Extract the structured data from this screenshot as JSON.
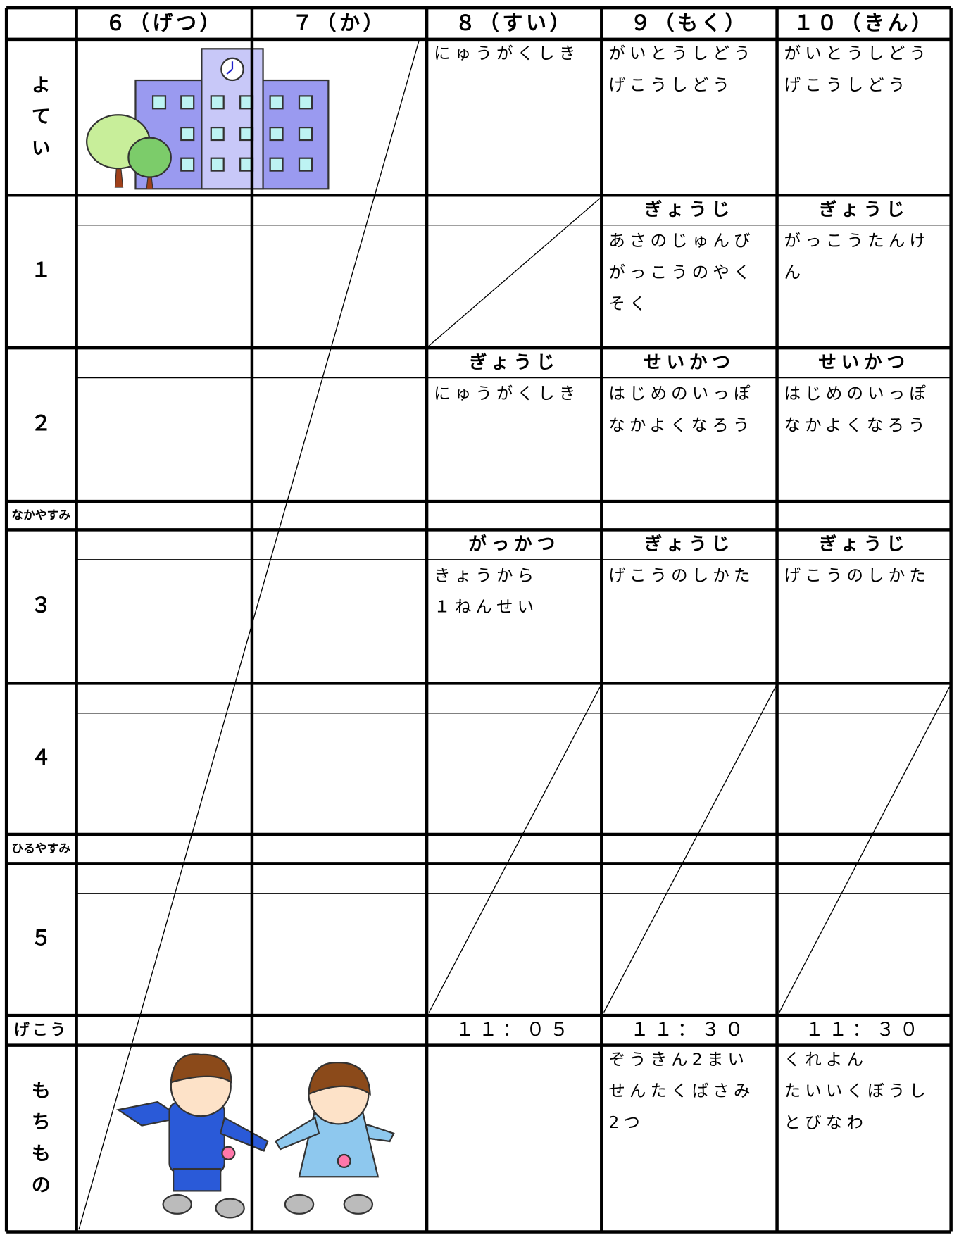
{
  "columns": [
    "６（げつ）",
    "７（か）",
    "８（すい）",
    "９（もく）",
    "１０（きん）"
  ],
  "rows": [
    {
      "label": "よてい",
      "cells": [
        null,
        null,
        {
          "lines": [
            "にゅうがくしき"
          ]
        },
        {
          "lines": [
            "がいとうしどう",
            "げこうしどう"
          ]
        },
        {
          "lines": [
            "がいとうしどう",
            "げこうしどう"
          ]
        }
      ]
    },
    {
      "label": "１",
      "cells": [
        null,
        null,
        null,
        {
          "title": "ぎょうじ",
          "lines": [
            "あさのじゅんび",
            "がっこうのやく",
            "そく"
          ]
        },
        {
          "title": "ぎょうじ",
          "lines": [
            "がっこうたんけ",
            "ん"
          ]
        }
      ]
    },
    {
      "label": "２",
      "cells": [
        null,
        null,
        {
          "title": "ぎょうじ",
          "lines": [
            "にゅうがくしき"
          ]
        },
        {
          "title": "せいかつ",
          "lines": [
            "はじめのいっぽ",
            "なかよくなろう"
          ]
        },
        {
          "title": "せいかつ",
          "lines": [
            "はじめのいっぽ",
            "なかよくなろう"
          ]
        }
      ]
    },
    {
      "label": "なかやすみ",
      "cells": [
        null,
        null,
        null,
        null,
        null
      ]
    },
    {
      "label": "３",
      "cells": [
        null,
        null,
        {
          "title": "がっかつ",
          "lines": [
            "きょうから",
            "１ねんせい"
          ]
        },
        {
          "title": "ぎょうじ",
          "lines": [
            "げこうのしかた"
          ]
        },
        {
          "title": "ぎょうじ",
          "lines": [
            "げこうのしかた"
          ]
        }
      ]
    },
    {
      "label": "４",
      "cells": [
        null,
        null,
        null,
        null,
        null
      ]
    },
    {
      "label": "ひるやすみ",
      "cells": [
        null,
        null,
        null,
        null,
        null
      ]
    },
    {
      "label": "５",
      "cells": [
        null,
        null,
        null,
        null,
        null
      ]
    },
    {
      "label": "げこう",
      "cells": [
        null,
        null,
        {
          "lines": [
            "１１：０５"
          ]
        },
        {
          "lines": [
            "１１：３０"
          ]
        },
        {
          "lines": [
            "１１：３０"
          ]
        }
      ]
    },
    {
      "label": "もちもの",
      "cells": [
        null,
        null,
        null,
        {
          "lines": [
            "ぞうきん2まい",
            "せんたくばさみ",
            "2つ"
          ]
        },
        {
          "lines": [
            "くれよん",
            "たいいくぼうし",
            "とびなわ"
          ]
        }
      ]
    }
  ]
}
